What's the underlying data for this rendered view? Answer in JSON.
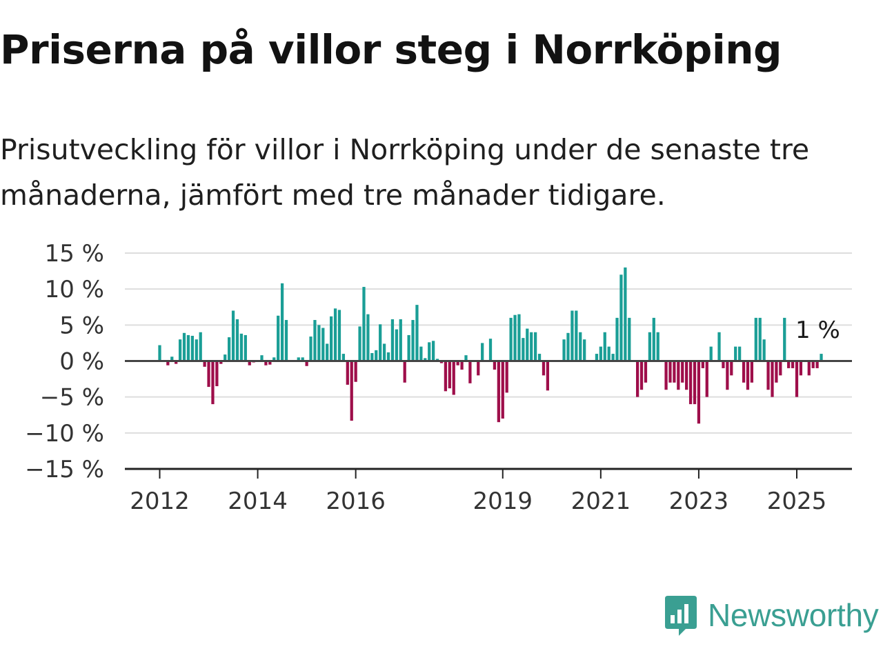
{
  "title": "Priserna på villor steg i Norrköping",
  "subtitle": "Prisutveckling för villor i Norrköping under de senaste tre månaderna, jämfört med tre månader tidigare.",
  "brand": {
    "name": "Newsworthy",
    "icon": "newsworthy-logo-icon",
    "color": "#3a9f92"
  },
  "colors": {
    "positive": "#1a9e96",
    "negative": "#9e0e4a",
    "grid": "#dddddd",
    "zero_line": "#444444"
  },
  "chart_data": {
    "type": "bar",
    "title": "Priserna på villor steg i Norrköping",
    "ylabel": "",
    "xlabel": "",
    "ylim": [
      -15,
      15
    ],
    "y_ticks": [
      15,
      10,
      5,
      0,
      -5,
      -10,
      -15
    ],
    "y_tick_labels": [
      "15 %",
      "10 %",
      "5 %",
      "0 %",
      "−5 %",
      "−10 %",
      "−15 %"
    ],
    "x_ticks": [
      "2012",
      "2014",
      "2016",
      "2019",
      "2021",
      "2023",
      "2025"
    ],
    "x_tick_dates": [
      "2012-01",
      "2014-01",
      "2016-01",
      "2019-01",
      "2021-01",
      "2023-01",
      "2025-01"
    ],
    "grid": true,
    "last_value_label": "1 %",
    "series": [
      {
        "values": [
          [
            "2012-01",
            2.2
          ],
          [
            "2012-02",
            0
          ],
          [
            "2012-03",
            -0.6
          ],
          [
            "2012-04",
            0.6
          ],
          [
            "2012-05",
            -0.4
          ],
          [
            "2012-06",
            3.0
          ],
          [
            "2012-07",
            3.9
          ],
          [
            "2012-08",
            3.6
          ],
          [
            "2012-09",
            3.5
          ],
          [
            "2012-10",
            3.0
          ],
          [
            "2012-11",
            4.0
          ],
          [
            "2012-12",
            -0.8
          ],
          [
            "2013-01",
            -3.6
          ],
          [
            "2013-02",
            -6.0
          ],
          [
            "2013-03",
            -3.5
          ],
          [
            "2013-04",
            -0.4
          ],
          [
            "2013-05",
            0.9
          ],
          [
            "2013-06",
            3.3
          ],
          [
            "2013-07",
            7.0
          ],
          [
            "2013-08",
            5.8
          ],
          [
            "2013-09",
            3.8
          ],
          [
            "2013-10",
            3.6
          ],
          [
            "2013-11",
            -0.6
          ],
          [
            "2013-12",
            -0.2
          ],
          [
            "2014-01",
            0
          ],
          [
            "2014-02",
            0.8
          ],
          [
            "2014-03",
            -0.6
          ],
          [
            "2014-04",
            -0.5
          ],
          [
            "2014-05",
            0.5
          ],
          [
            "2014-06",
            6.3
          ],
          [
            "2014-07",
            10.8
          ],
          [
            "2014-08",
            5.7
          ],
          [
            "2014-09",
            0
          ],
          [
            "2014-10",
            0
          ],
          [
            "2014-11",
            0.5
          ],
          [
            "2014-12",
            0.5
          ],
          [
            "2015-01",
            -0.7
          ],
          [
            "2015-02",
            3.4
          ],
          [
            "2015-03",
            5.7
          ],
          [
            "2015-04",
            5.0
          ],
          [
            "2015-05",
            4.6
          ],
          [
            "2015-06",
            2.4
          ],
          [
            "2015-07",
            6.2
          ],
          [
            "2015-08",
            7.3
          ],
          [
            "2015-09",
            7.1
          ],
          [
            "2015-10",
            1.0
          ],
          [
            "2015-11",
            -3.3
          ],
          [
            "2015-12",
            -8.3
          ],
          [
            "2016-01",
            -2.9
          ],
          [
            "2016-02",
            4.8
          ],
          [
            "2016-03",
            10.3
          ],
          [
            "2016-04",
            6.5
          ],
          [
            "2016-05",
            1.1
          ],
          [
            "2016-06",
            1.5
          ],
          [
            "2016-07",
            5.1
          ],
          [
            "2016-08",
            2.4
          ],
          [
            "2016-09",
            1.2
          ],
          [
            "2016-10",
            5.8
          ],
          [
            "2016-11",
            4.4
          ],
          [
            "2016-12",
            5.8
          ],
          [
            "2017-01",
            -3.0
          ],
          [
            "2017-02",
            3.6
          ],
          [
            "2017-03",
            5.7
          ],
          [
            "2017-04",
            7.8
          ],
          [
            "2017-05",
            2.0
          ],
          [
            "2017-06",
            0.4
          ],
          [
            "2017-07",
            2.6
          ],
          [
            "2017-08",
            2.8
          ],
          [
            "2017-09",
            0.3
          ],
          [
            "2017-10",
            -0.3
          ],
          [
            "2017-11",
            -4.2
          ],
          [
            "2017-12",
            -3.8
          ],
          [
            "2018-01",
            -4.7
          ],
          [
            "2018-02",
            -0.6
          ],
          [
            "2018-03",
            -1.2
          ],
          [
            "2018-04",
            0.8
          ],
          [
            "2018-05",
            -3.1
          ],
          [
            "2018-06",
            0
          ],
          [
            "2018-07",
            -2.0
          ],
          [
            "2018-08",
            2.5
          ],
          [
            "2018-09",
            0
          ],
          [
            "2018-10",
            3.1
          ],
          [
            "2018-11",
            -1.2
          ],
          [
            "2018-12",
            -8.5
          ],
          [
            "2019-01",
            -8.0
          ],
          [
            "2019-02",
            -4.4
          ],
          [
            "2019-03",
            6.0
          ],
          [
            "2019-04",
            6.4
          ],
          [
            "2019-05",
            6.5
          ],
          [
            "2019-06",
            3.2
          ],
          [
            "2019-07",
            4.5
          ],
          [
            "2019-08",
            4.0
          ],
          [
            "2019-09",
            4.0
          ],
          [
            "2019-10",
            1.0
          ],
          [
            "2019-11",
            -2.0
          ],
          [
            "2019-12",
            -4.1
          ],
          [
            "2020-01",
            0
          ],
          [
            "2020-02",
            0
          ],
          [
            "2020-03",
            0
          ],
          [
            "2020-04",
            3.0
          ],
          [
            "2020-05",
            3.9
          ],
          [
            "2020-06",
            7.0
          ],
          [
            "2020-07",
            7.0
          ],
          [
            "2020-08",
            4.0
          ],
          [
            "2020-09",
            3.0
          ],
          [
            "2020-10",
            0
          ],
          [
            "2020-11",
            0
          ],
          [
            "2020-12",
            1.0
          ],
          [
            "2021-01",
            2.0
          ],
          [
            "2021-02",
            4.0
          ],
          [
            "2021-03",
            2.0
          ],
          [
            "2021-04",
            1.0
          ],
          [
            "2021-05",
            6.0
          ],
          [
            "2021-06",
            12.0
          ],
          [
            "2021-07",
            13.0
          ],
          [
            "2021-08",
            6.0
          ],
          [
            "2021-09",
            0
          ],
          [
            "2021-10",
            -5.0
          ],
          [
            "2021-11",
            -4.0
          ],
          [
            "2021-12",
            -3.0
          ],
          [
            "2022-01",
            4.0
          ],
          [
            "2022-02",
            6.0
          ],
          [
            "2022-03",
            4.0
          ],
          [
            "2022-04",
            0
          ],
          [
            "2022-05",
            -4.0
          ],
          [
            "2022-06",
            -3.0
          ],
          [
            "2022-07",
            -3.0
          ],
          [
            "2022-08",
            -4.0
          ],
          [
            "2022-09",
            -3.0
          ],
          [
            "2022-10",
            -4.0
          ],
          [
            "2022-11",
            -6.0
          ],
          [
            "2022-12",
            -6.0
          ],
          [
            "2023-01",
            -8.7
          ],
          [
            "2023-02",
            -1.0
          ],
          [
            "2023-03",
            -5.0
          ],
          [
            "2023-04",
            2.0
          ],
          [
            "2023-05",
            0
          ],
          [
            "2023-06",
            4.0
          ],
          [
            "2023-07",
            -1.0
          ],
          [
            "2023-08",
            -4.0
          ],
          [
            "2023-09",
            -2.0
          ],
          [
            "2023-10",
            2.0
          ],
          [
            "2023-11",
            2.0
          ],
          [
            "2023-12",
            -3.0
          ],
          [
            "2024-01",
            -4.0
          ],
          [
            "2024-02",
            -3.0
          ],
          [
            "2024-03",
            6.0
          ],
          [
            "2024-04",
            6.0
          ],
          [
            "2024-05",
            3.0
          ],
          [
            "2024-06",
            -4.0
          ],
          [
            "2024-07",
            -5.0
          ],
          [
            "2024-08",
            -3.0
          ],
          [
            "2024-09",
            -2.0
          ],
          [
            "2024-10",
            6.0
          ],
          [
            "2024-11",
            -1.0
          ],
          [
            "2024-12",
            -1.0
          ],
          [
            "2025-01",
            -5.0
          ],
          [
            "2025-02",
            -2.0
          ],
          [
            "2025-03",
            0
          ],
          [
            "2025-04",
            -2.0
          ],
          [
            "2025-05",
            -1.0
          ],
          [
            "2025-06",
            -1.0
          ],
          [
            "2025-07",
            1.0
          ]
        ]
      }
    ]
  }
}
